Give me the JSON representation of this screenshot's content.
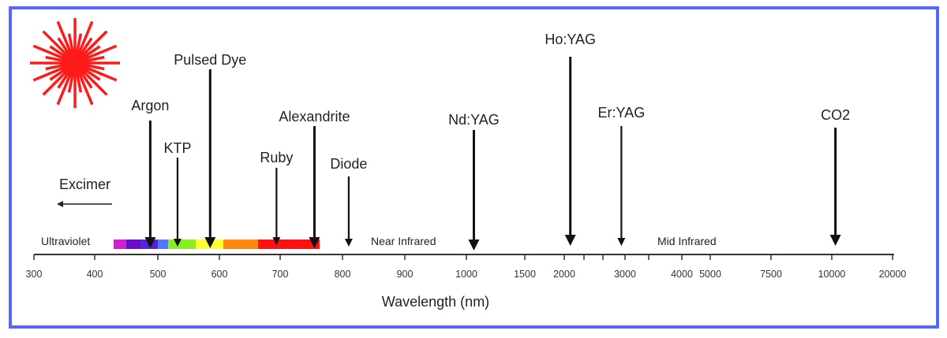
{
  "colors": {
    "border": "#5566ff",
    "starburst": "#ff1a1a"
  },
  "icon": "laser-starburst-icon",
  "axis": {
    "title": "Wavelength (nm)",
    "tick_labels": [
      "300",
      "400",
      "500",
      "600",
      "700",
      "800",
      "900",
      "1000",
      "1500",
      "2000",
      "3000",
      "4000",
      "5000",
      "7500",
      "10000",
      "20000"
    ]
  },
  "regions": {
    "ultraviolet": "Ultraviolet",
    "near_infrared": "Near Infrared",
    "mid_infrared": "Mid Infrared"
  },
  "excimer": {
    "label": "Excimer",
    "direction": "left"
  },
  "spectrum_colors": [
    "#cc22cc",
    "#6a0dc8",
    "#5522dd",
    "#5577ff",
    "#88ee22",
    "#ffff33",
    "#ff8811",
    "#ff1111"
  ],
  "lasers": [
    {
      "name": "Argon",
      "wavelength_nm": 488
    },
    {
      "name": "KTP",
      "wavelength_nm": 532
    },
    {
      "name": "Pulsed Dye",
      "wavelength_nm": 585
    },
    {
      "name": "Ruby",
      "wavelength_nm": 694
    },
    {
      "name": "Alexandrite",
      "wavelength_nm": 755
    },
    {
      "name": "Diode",
      "wavelength_nm": 810
    },
    {
      "name": "Nd:YAG",
      "wavelength_nm": 1064
    },
    {
      "name": "Ho:YAG",
      "wavelength_nm": 2100
    },
    {
      "name": "Er:YAG",
      "wavelength_nm": 2940
    },
    {
      "name": "CO2",
      "wavelength_nm": 10600
    }
  ]
}
